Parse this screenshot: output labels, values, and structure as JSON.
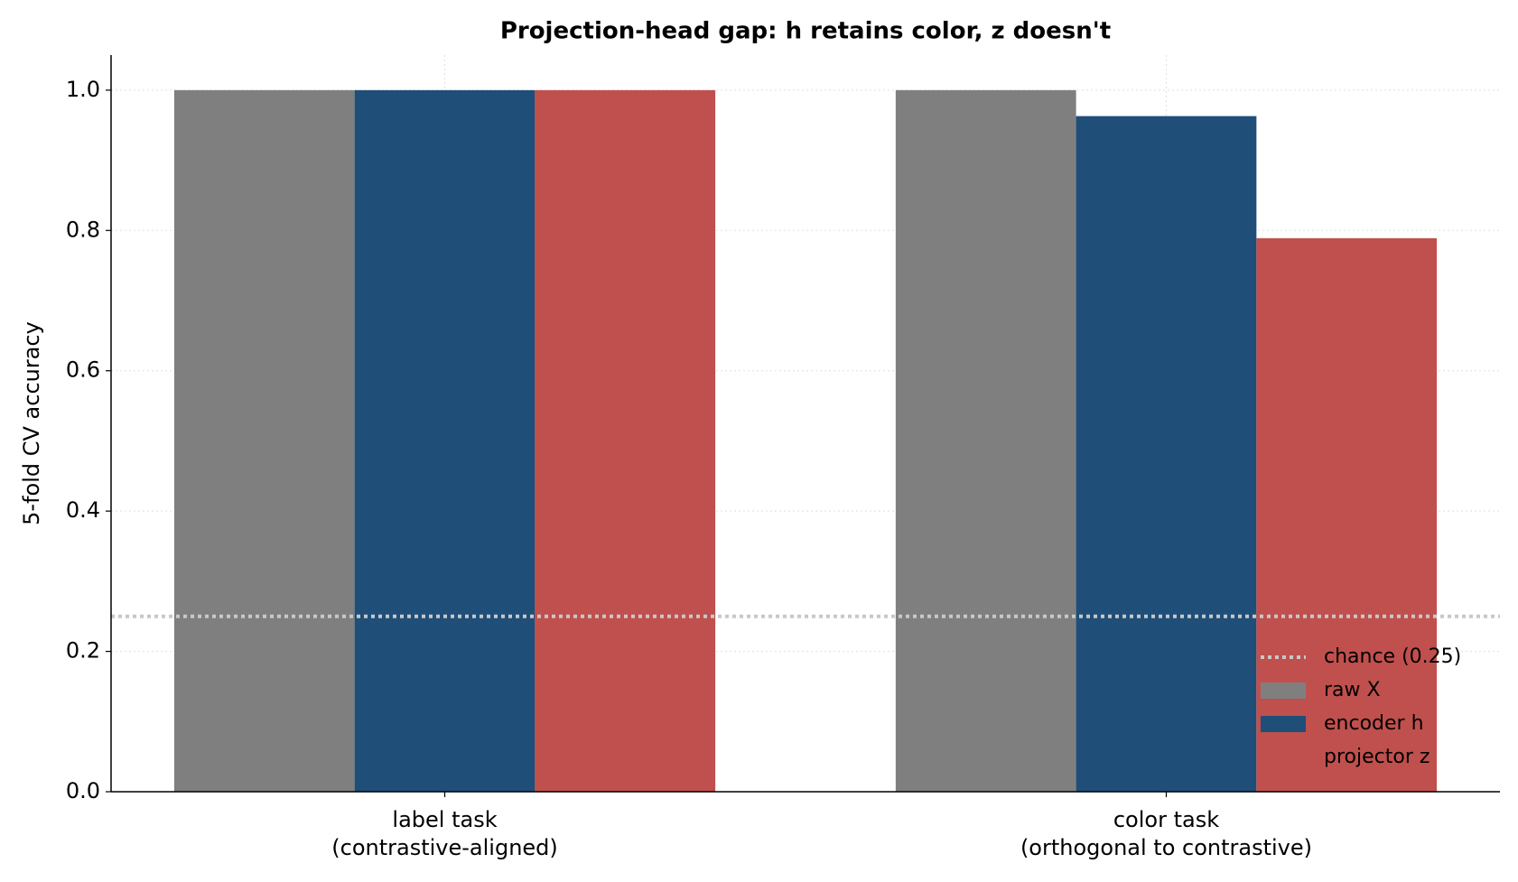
{
  "chart_data": {
    "type": "bar",
    "title": "Projection-head gap: h retains color, z doesn't",
    "y_label": "5-fold CV accuracy",
    "categories": [
      "label task\n(contrastive-aligned)",
      "color task\n(orthogonal to contrastive)"
    ],
    "series": [
      {
        "name": "raw X",
        "color": "#7f7f7f",
        "values": [
          1.0,
          1.0
        ]
      },
      {
        "name": "encoder h",
        "color": "#1f4e79",
        "values": [
          1.0,
          0.963
        ]
      },
      {
        "name": "projector z",
        "color": "#c0504d",
        "values": [
          1.0,
          0.789
        ]
      }
    ],
    "reference_line": {
      "value": 0.25,
      "label": "chance (0.25)",
      "color": "#c8c8c8"
    },
    "ylim": [
      0,
      1.05
    ],
    "yticks": [
      {
        "value": 0,
        "label": "0.0"
      },
      0.2,
      0.4,
      0.6,
      0.8,
      {
        "value": 1,
        "label": "1.0"
      }
    ],
    "grid": true,
    "legend": "lower right"
  }
}
